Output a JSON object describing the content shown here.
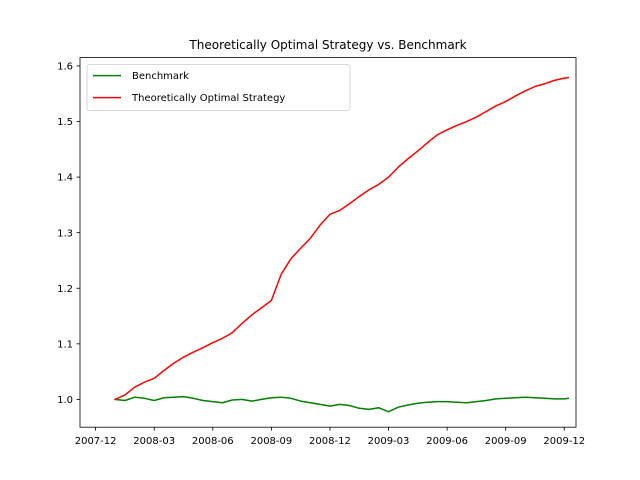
{
  "chart_data": {
    "type": "line",
    "title": "Theoretically Optimal Strategy vs. Benchmark",
    "xlabel": "",
    "ylabel": "",
    "x_unit": "months since 2007-12",
    "xlim": [
      -0.8,
      24.6
    ],
    "ylim": [
      0.95,
      1.615
    ],
    "x_ticks": [
      {
        "value": 0,
        "label": "2007-12"
      },
      {
        "value": 3,
        "label": "2008-03"
      },
      {
        "value": 6,
        "label": "2008-06"
      },
      {
        "value": 9,
        "label": "2008-09"
      },
      {
        "value": 12,
        "label": "2008-12"
      },
      {
        "value": 15,
        "label": "2009-03"
      },
      {
        "value": 18,
        "label": "2009-06"
      },
      {
        "value": 21,
        "label": "2009-09"
      },
      {
        "value": 24,
        "label": "2009-12"
      }
    ],
    "y_ticks": [
      {
        "value": 1.0,
        "label": "1.0"
      },
      {
        "value": 1.1,
        "label": "1.1"
      },
      {
        "value": 1.2,
        "label": "1.2"
      },
      {
        "value": 1.3,
        "label": "1.3"
      },
      {
        "value": 1.4,
        "label": "1.4"
      },
      {
        "value": 1.5,
        "label": "1.5"
      },
      {
        "value": 1.6,
        "label": "1.6"
      }
    ],
    "legend_position": "top-left",
    "series": [
      {
        "name": "Benchmark",
        "color": "#008000",
        "x": [
          1.0,
          1.5,
          2.0,
          2.5,
          3.0,
          3.5,
          4.0,
          4.5,
          5.0,
          5.5,
          6.0,
          6.5,
          7.0,
          7.5,
          8.0,
          8.5,
          9.0,
          9.5,
          10.0,
          10.5,
          11.0,
          11.5,
          12.0,
          12.5,
          13.0,
          13.5,
          14.0,
          14.5,
          15.0,
          15.5,
          16.0,
          16.5,
          17.0,
          17.5,
          18.0,
          18.5,
          19.0,
          19.5,
          20.0,
          20.5,
          21.0,
          21.5,
          22.0,
          22.5,
          23.0,
          23.5,
          24.0,
          24.2
        ],
        "values": [
          1.0,
          0.998,
          1.004,
          1.002,
          0.998,
          1.003,
          1.004,
          1.005,
          1.002,
          0.998,
          0.996,
          0.994,
          0.999,
          1.0,
          0.997,
          1.0,
          1.003,
          1.004,
          1.002,
          0.997,
          0.994,
          0.991,
          0.988,
          0.991,
          0.989,
          0.984,
          0.982,
          0.985,
          0.978,
          0.986,
          0.99,
          0.993,
          0.995,
          0.996,
          0.996,
          0.995,
          0.994,
          0.996,
          0.998,
          1.001,
          1.002,
          1.003,
          1.004,
          1.003,
          1.002,
          1.001,
          1.001,
          1.002
        ]
      },
      {
        "name": "Theoretically Optimal Strategy",
        "color": "#ff0000",
        "x": [
          1.0,
          1.5,
          2.0,
          2.5,
          3.0,
          3.5,
          4.0,
          4.5,
          5.0,
          5.5,
          6.0,
          6.5,
          7.0,
          7.5,
          8.0,
          8.5,
          9.0,
          9.5,
          10.0,
          10.5,
          11.0,
          11.5,
          12.0,
          12.5,
          13.0,
          13.5,
          14.0,
          14.5,
          15.0,
          15.5,
          16.0,
          16.5,
          17.0,
          17.5,
          18.0,
          18.5,
          19.0,
          19.5,
          20.0,
          20.5,
          21.0,
          21.5,
          22.0,
          22.5,
          23.0,
          23.5,
          24.0,
          24.2
        ],
        "values": [
          1.0,
          1.008,
          1.022,
          1.031,
          1.038,
          1.052,
          1.065,
          1.076,
          1.085,
          1.093,
          1.102,
          1.11,
          1.12,
          1.137,
          1.152,
          1.165,
          1.178,
          1.225,
          1.253,
          1.272,
          1.29,
          1.314,
          1.333,
          1.34,
          1.352,
          1.365,
          1.377,
          1.387,
          1.4,
          1.418,
          1.433,
          1.447,
          1.462,
          1.476,
          1.485,
          1.493,
          1.5,
          1.508,
          1.518,
          1.528,
          1.536,
          1.546,
          1.555,
          1.563,
          1.568,
          1.574,
          1.578,
          1.579
        ]
      }
    ]
  }
}
